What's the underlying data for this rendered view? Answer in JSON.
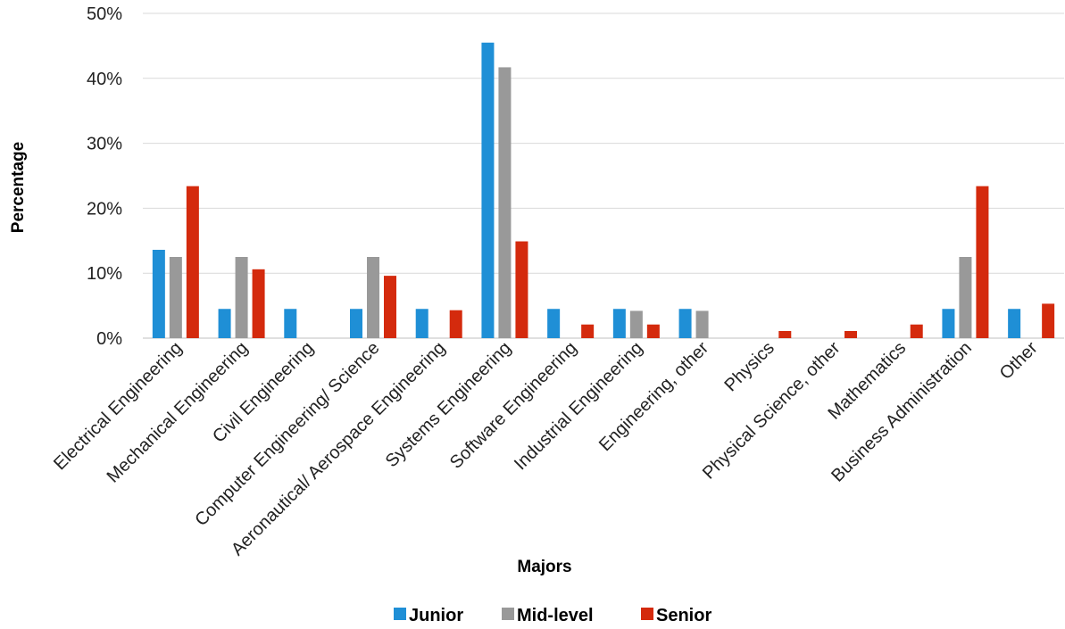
{
  "chart_data": {
    "type": "bar",
    "xlabel": "Majors",
    "ylabel": "Percentage",
    "ylim": [
      0,
      50
    ],
    "yticks": [
      "0%",
      "10%",
      "20%",
      "30%",
      "40%",
      "50%"
    ],
    "grid": true,
    "legend_position": "bottom",
    "categories": [
      "Electrical Engineering",
      "Mechanical Engineering",
      "Civil Engineering",
      "Computer Engineering/ Science",
      "Aeronautical/ Aerospace Engineering",
      "Systems Engineering",
      "Software Engineering",
      "Industrial Engineering",
      "Engineering, other",
      "Physics",
      "Physical Science, other",
      "Mathematics",
      "Business Administration",
      "Other"
    ],
    "series": [
      {
        "name": "Junior",
        "color": "#1f8fd6",
        "values": [
          13.6,
          4.5,
          4.5,
          4.5,
          4.5,
          45.5,
          4.5,
          4.5,
          4.5,
          0,
          0,
          0,
          4.5,
          4.5
        ]
      },
      {
        "name": "Mid-level",
        "color": "#999999",
        "values": [
          12.5,
          12.5,
          0,
          12.5,
          0,
          41.7,
          0,
          4.2,
          4.2,
          0,
          0,
          0,
          12.5,
          0
        ]
      },
      {
        "name": "Senior",
        "color": "#d42a0d",
        "values": [
          23.4,
          10.6,
          0,
          9.6,
          4.3,
          14.9,
          2.1,
          2.1,
          0,
          1.1,
          1.1,
          2.1,
          23.4,
          5.3
        ]
      }
    ]
  }
}
